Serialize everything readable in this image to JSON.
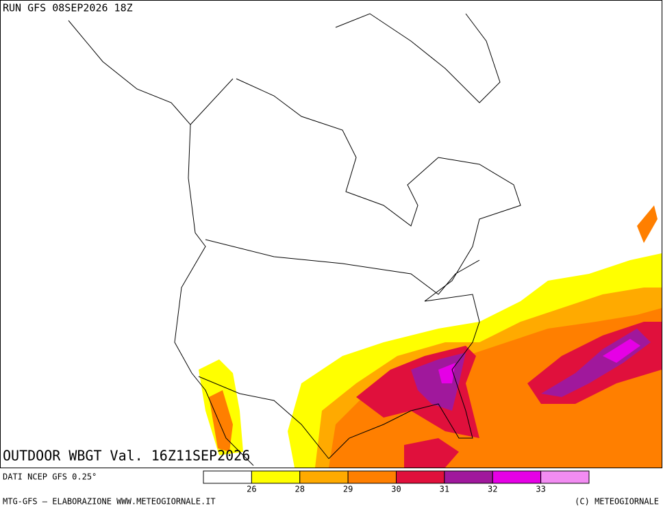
{
  "header": {
    "run": "RUN GFS 08SEP2026 18Z"
  },
  "map": {
    "title": "OUTDOOR WBGT Val. 16Z11SEP2026"
  },
  "legend": {
    "source": "DATI NCEP GFS 0.25°",
    "colors": [
      "#ffffff",
      "#ffff00",
      "#ffaa00",
      "#ff7f00",
      "#e0103c",
      "#a0189c",
      "#e600e6",
      "#f28cf2"
    ],
    "labels": [
      "26",
      "28",
      "29",
      "30",
      "31",
      "32",
      "33"
    ]
  },
  "footer": {
    "left": "MTG-GFS — ELABORAZIONE WWW.METEOGIORNALE.IT",
    "right": "(C) METEOGIORNALE"
  }
}
